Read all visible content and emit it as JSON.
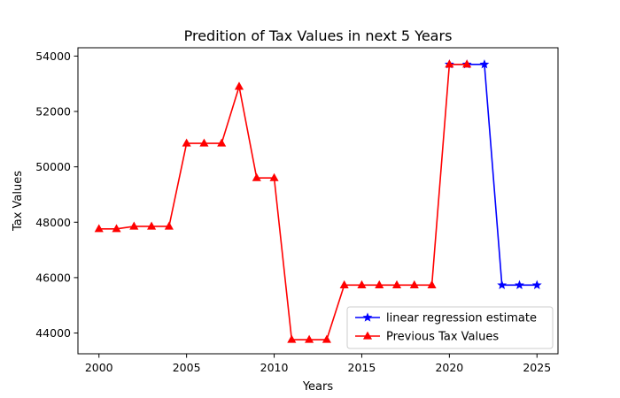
{
  "chart_data": {
    "type": "line",
    "title": "Predition of Tax Values in next 5 Years",
    "xlabel": "Years",
    "ylabel": "Tax Values",
    "xlim": [
      1998.8,
      2026.2
    ],
    "ylim": [
      43250,
      54300
    ],
    "xticks": [
      2000,
      2005,
      2010,
      2015,
      2020,
      2025
    ],
    "yticks": [
      44000,
      46000,
      48000,
      50000,
      52000,
      54000
    ],
    "grid": false,
    "legend_position": "lower-right",
    "series": [
      {
        "name": "linear regression estimate",
        "color": "#0000ff",
        "marker": "star",
        "x": [
          2020,
          2021,
          2022,
          2023,
          2024,
          2025
        ],
        "y": [
          53700,
          53700,
          53700,
          45730,
          45730,
          45730
        ]
      },
      {
        "name": "Previous Tax Values",
        "color": "#ff0000",
        "marker": "triangle",
        "x": [
          2000,
          2001,
          2002,
          2003,
          2004,
          2005,
          2006,
          2007,
          2008,
          2009,
          2010,
          2011,
          2012,
          2013,
          2014,
          2015,
          2016,
          2017,
          2018,
          2019,
          2020,
          2021
        ],
        "y": [
          47760,
          47760,
          47850,
          47850,
          47850,
          50850,
          50850,
          50850,
          52900,
          49600,
          49600,
          43760,
          43760,
          43760,
          45730,
          45730,
          45730,
          45730,
          45730,
          45730,
          53700,
          53700
        ]
      }
    ]
  }
}
